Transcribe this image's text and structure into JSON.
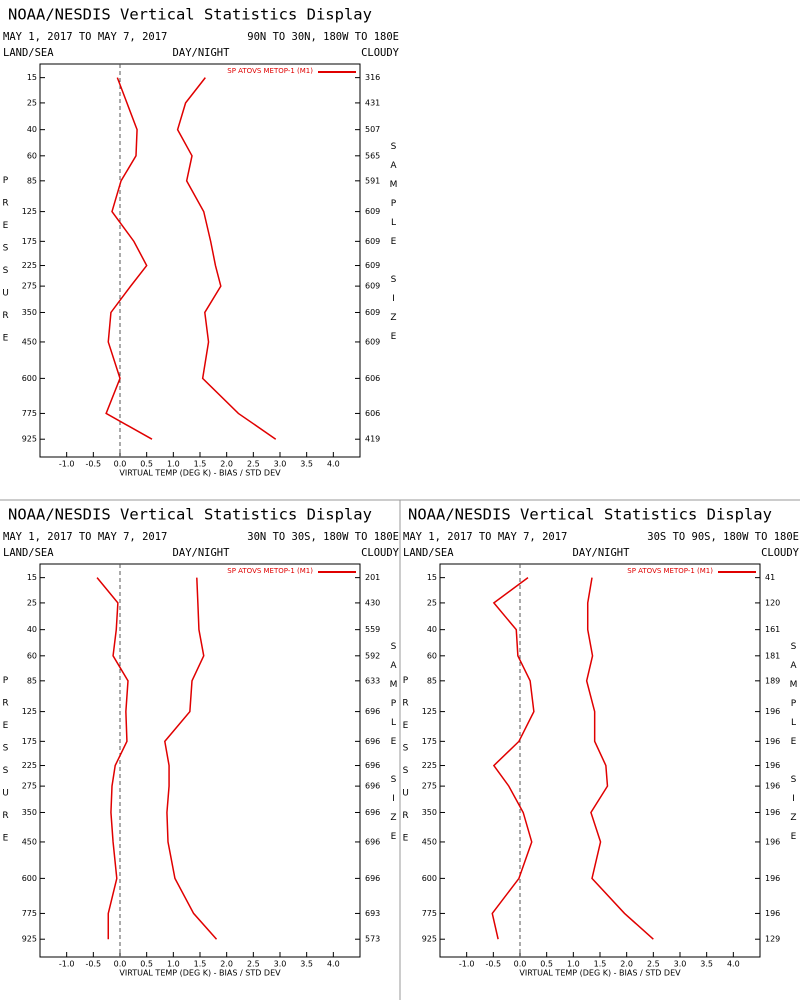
{
  "chart_data": [
    {
      "type": "line",
      "title": "NOAA/NESDIS Vertical Statistics Display",
      "subtitle": "MAY 1, 2017 TO MAY 7, 2017",
      "region": "90N TO 30N, 180W TO 180E",
      "land_sea": "LAND/SEA",
      "day_night": "DAY/NIGHT",
      "cloud": "CLOUDY",
      "ylabel": "PRESSURE",
      "y2label": "SAMPLE SIZE",
      "xlabel": "VIRTUAL TEMP (DEG K) - BIAS / STD DEV",
      "xlim": [
        -1.5,
        4.5
      ],
      "xticks": [
        {
          "value": -1,
          "label": "-1.0"
        },
        -0.5,
        {
          "value": 0,
          "label": "0.0"
        },
        0.5,
        {
          "value": 1,
          "label": "1.0"
        },
        1.5,
        {
          "value": 2,
          "label": "2.0"
        },
        2.5,
        {
          "value": 3,
          "label": "3.0"
        },
        3.5,
        {
          "value": 4,
          "label": "4.0"
        }
      ],
      "ylim": [
        11,
        1040
      ],
      "yticks": [
        15,
        25,
        40,
        60,
        85,
        125,
        175,
        225,
        275,
        350,
        450,
        600,
        775,
        925
      ],
      "series": [
        {
          "name": "SP ATOVS METOP-1 (M1)",
          "color": "#e00000",
          "values": [
            -0.05,
            0.13,
            0.32,
            0.3,
            0.02,
            -0.15,
            0.26,
            0.5,
            0.2,
            -0.17,
            -0.22,
            0,
            -0.26,
            0.6
          ],
          "std_dev": [
            1.6,
            1.23,
            1.08,
            1.35,
            1.25,
            1.57,
            1.7,
            1.79,
            1.89,
            1.59,
            1.66,
            1.55,
            2.22,
            2.92
          ]
        }
      ],
      "sample_size": [
        316,
        431,
        507,
        565,
        591,
        609,
        609,
        609,
        609,
        609,
        609,
        606,
        606,
        419
      ]
    },
    {
      "type": "line",
      "title": "NOAA/NESDIS Vertical Statistics Display",
      "subtitle": "MAY 1, 2017 TO MAY 7, 2017",
      "region": "30N TO 30S, 180W TO 180E",
      "land_sea": "LAND/SEA",
      "day_night": "DAY/NIGHT",
      "cloud": "CLOUDY",
      "ylabel": "PRESSURE",
      "y2label": "SAMPLE SIZE",
      "xlabel": "VIRTUAL TEMP (DEG K) - BIAS / STD DEV",
      "xlim": [
        -1.5,
        4.5
      ],
      "xticks": [
        {
          "value": -1,
          "label": "-1.0"
        },
        -0.5,
        {
          "value": 0,
          "label": "0.0"
        },
        0.5,
        {
          "value": 1,
          "label": "1.0"
        },
        1.5,
        {
          "value": 2,
          "label": "2.0"
        },
        2.5,
        {
          "value": 3,
          "label": "3.0"
        },
        3.5,
        {
          "value": 4,
          "label": "4.0"
        }
      ],
      "ylim": [
        11,
        1040
      ],
      "yticks": [
        15,
        25,
        40,
        60,
        85,
        125,
        175,
        225,
        275,
        350,
        450,
        600,
        775,
        925
      ],
      "series": [
        {
          "name": "SP ATOVS METOP-1 (M1)",
          "color": "#e00000",
          "values": [
            -0.43,
            -0.04,
            -0.07,
            -0.13,
            0.15,
            0.11,
            0.13,
            -0.09,
            -0.15,
            -0.17,
            -0.13,
            -0.06,
            -0.22,
            -0.22
          ],
          "std_dev": [
            1.44,
            1.46,
            1.48,
            1.57,
            1.35,
            1.31,
            0.84,
            0.92,
            0.92,
            0.88,
            0.9,
            1.03,
            1.38,
            1.81
          ]
        }
      ],
      "sample_size": [
        201,
        430,
        559,
        592,
        633,
        696,
        696,
        696,
        696,
        696,
        696,
        696,
        693,
        573
      ]
    },
    {
      "type": "line",
      "title": "NOAA/NESDIS Vertical Statistics Display",
      "subtitle": "MAY 1, 2017 TO MAY 7, 2017",
      "region": "30S TO 90S, 180W TO 180E",
      "land_sea": "LAND/SEA",
      "day_night": "DAY/NIGHT",
      "cloud": "CLOUDY",
      "ylabel": "PRESSURE",
      "y2label": "SAMPLE SIZE",
      "xlabel": "VIRTUAL TEMP (DEG K) - BIAS / STD DEV",
      "xlim": [
        -1.5,
        4.5
      ],
      "xticks": [
        {
          "value": -1,
          "label": "-1.0"
        },
        -0.5,
        {
          "value": 0,
          "label": "0.0"
        },
        0.5,
        {
          "value": 1,
          "label": "1.0"
        },
        1.5,
        {
          "value": 2,
          "label": "2.0"
        },
        2.5,
        {
          "value": 3,
          "label": "3.0"
        },
        3.5,
        {
          "value": 4,
          "label": "4.0"
        }
      ],
      "ylim": [
        11,
        1040
      ],
      "yticks": [
        15,
        25,
        40,
        60,
        85,
        125,
        175,
        225,
        275,
        350,
        450,
        600,
        775,
        925
      ],
      "series": [
        {
          "name": "SP ATOVS METOP-1 (M1)",
          "color": "#e00000",
          "values": [
            0.15,
            -0.49,
            -0.07,
            -0.04,
            0.19,
            0.26,
            -0.02,
            -0.49,
            -0.21,
            0.06,
            0.22,
            -0.02,
            -0.52,
            -0.41
          ],
          "std_dev": [
            1.35,
            1.27,
            1.27,
            1.36,
            1.25,
            1.4,
            1.4,
            1.61,
            1.64,
            1.33,
            1.51,
            1.35,
            1.96,
            2.5
          ]
        }
      ],
      "sample_size": [
        41,
        120,
        161,
        181,
        189,
        196,
        196,
        196,
        196,
        196,
        196,
        196,
        196,
        129
      ]
    }
  ]
}
